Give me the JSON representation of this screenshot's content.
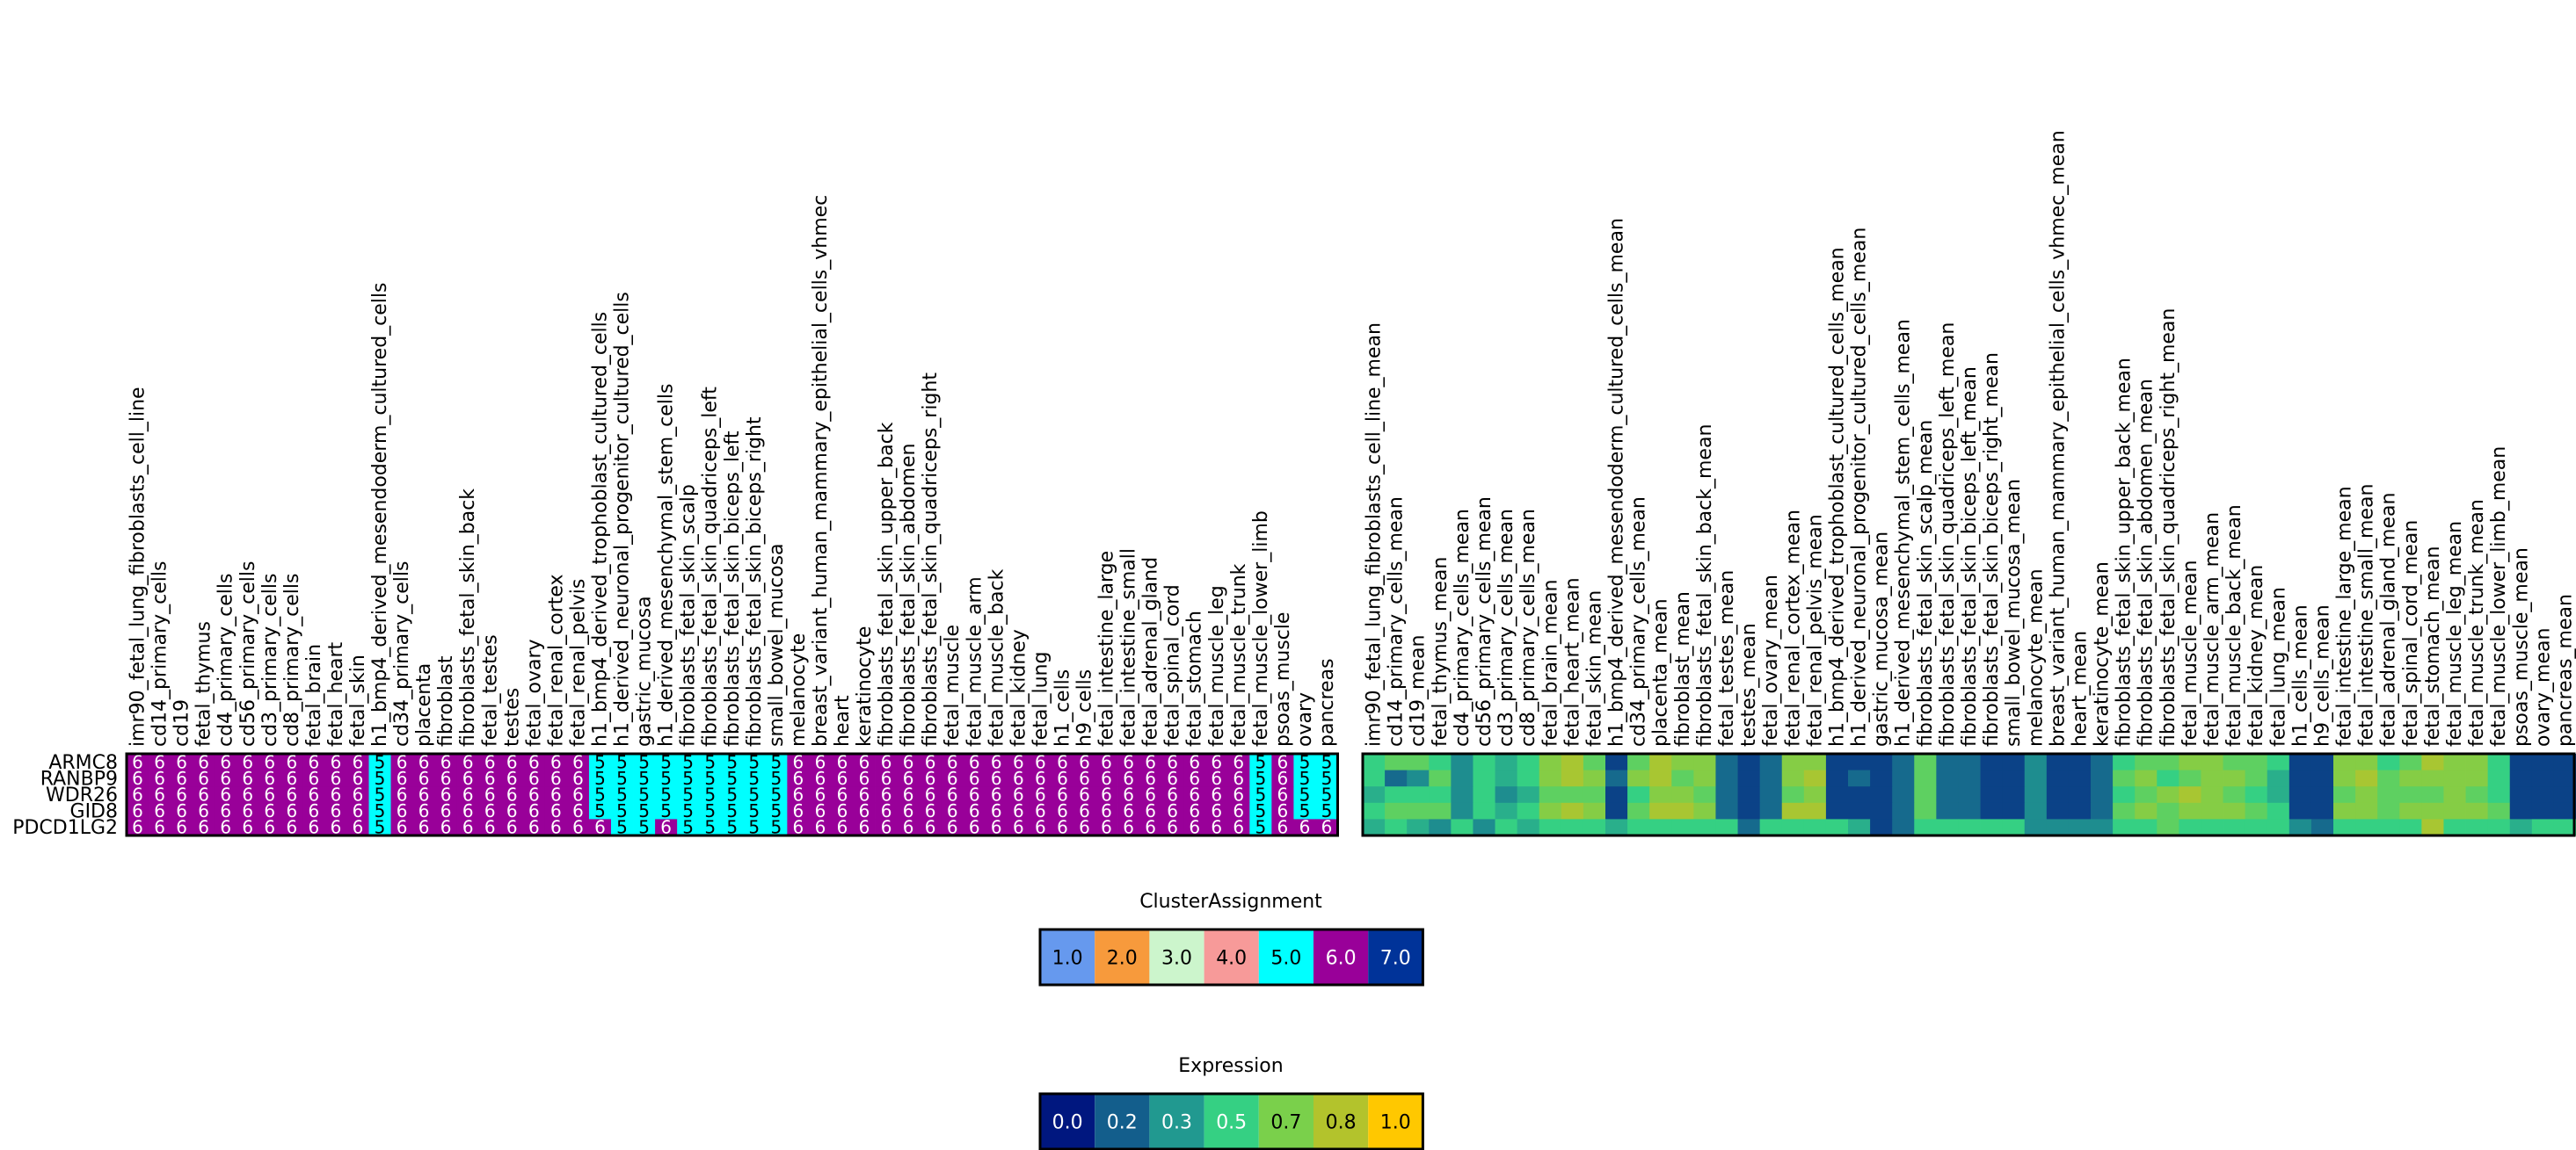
{
  "chart_data": [
    {
      "type": "heatmap",
      "name": "cluster-assignment-matrix",
      "rows": [
        "ARMC8",
        "RANBP9",
        "WDR26",
        "GID8",
        "PDCD1LG2"
      ],
      "columns": [
        "imr90_fetal_lung_fibroblasts_cell_line",
        "cd14_primary_cells",
        "cd19",
        "fetal_thymus",
        "cd4_primary_cells",
        "cd56_primary_cells",
        "cd3_primary_cells",
        "cd8_primary_cells",
        "fetal_brain",
        "fetal_heart",
        "fetal_skin",
        "h1_bmp4_derived_mesendoderm_cultured_cells",
        "cd34_primary_cells",
        "placenta",
        "fibroblast",
        "fibroblasts_fetal_skin_back",
        "fetal_testes",
        "testes",
        "fetal_ovary",
        "fetal_renal_cortex",
        "fetal_renal_pelvis",
        "h1_bmp4_derived_trophoblast_cultured_cells",
        "h1_derived_neuronal_progenitor_cultured_cells",
        "gastric_mucosa",
        "h1_derived_mesenchymal_stem_cells",
        "fibroblasts_fetal_skin_scalp",
        "fibroblasts_fetal_skin_quadriceps_left",
        "fibroblasts_fetal_skin_biceps_left",
        "fibroblasts_fetal_skin_biceps_right",
        "small_bowel_mucosa",
        "melanocyte",
        "breast_variant_human_mammary_epithelial_cells_vhmec",
        "heart",
        "keratinocyte",
        "fibroblasts_fetal_skin_upper_back",
        "fibroblasts_fetal_skin_abdomen",
        "fibroblasts_fetal_skin_quadriceps_right",
        "fetal_muscle",
        "fetal_muscle_arm",
        "fetal_muscle_back",
        "fetal_kidney",
        "fetal_lung",
        "h1_cells",
        "h9_cells",
        "fetal_intestine_large",
        "fetal_intestine_small",
        "fetal_adrenal_gland",
        "fetal_spinal_cord",
        "fetal_stomach",
        "fetal_muscle_leg",
        "fetal_muscle_trunk",
        "fetal_muscle_lower_limb",
        "psoas_muscle",
        "ovary",
        "pancreas"
      ],
      "values": [
        [
          6,
          6,
          6,
          6,
          6,
          6,
          6,
          6,
          6,
          6,
          6,
          5,
          6,
          6,
          6,
          6,
          6,
          6,
          6,
          6,
          6,
          5,
          5,
          5,
          5,
          5,
          5,
          5,
          5,
          5,
          6,
          6,
          6,
          6,
          6,
          6,
          6,
          6,
          6,
          6,
          6,
          6,
          6,
          6,
          6,
          6,
          6,
          6,
          6,
          6,
          6,
          5,
          6,
          5,
          5
        ],
        [
          6,
          6,
          6,
          6,
          6,
          6,
          6,
          6,
          6,
          6,
          6,
          5,
          6,
          6,
          6,
          6,
          6,
          6,
          6,
          6,
          6,
          5,
          5,
          5,
          5,
          5,
          5,
          5,
          5,
          5,
          6,
          6,
          6,
          6,
          6,
          6,
          6,
          6,
          6,
          6,
          6,
          6,
          6,
          6,
          6,
          6,
          6,
          6,
          6,
          6,
          6,
          5,
          6,
          5,
          5
        ],
        [
          6,
          6,
          6,
          6,
          6,
          6,
          6,
          6,
          6,
          6,
          6,
          5,
          6,
          6,
          6,
          6,
          6,
          6,
          6,
          6,
          6,
          5,
          5,
          5,
          5,
          5,
          5,
          5,
          5,
          5,
          6,
          6,
          6,
          6,
          6,
          6,
          6,
          6,
          6,
          6,
          6,
          6,
          6,
          6,
          6,
          6,
          6,
          6,
          6,
          6,
          6,
          5,
          6,
          5,
          5
        ],
        [
          6,
          6,
          6,
          6,
          6,
          6,
          6,
          6,
          6,
          6,
          6,
          5,
          6,
          6,
          6,
          6,
          6,
          6,
          6,
          6,
          6,
          5,
          5,
          5,
          5,
          5,
          5,
          5,
          5,
          5,
          6,
          6,
          6,
          6,
          6,
          6,
          6,
          6,
          6,
          6,
          6,
          6,
          6,
          6,
          6,
          6,
          6,
          6,
          6,
          6,
          6,
          5,
          6,
          5,
          5
        ],
        [
          6,
          6,
          6,
          6,
          6,
          6,
          6,
          6,
          6,
          6,
          6,
          5,
          6,
          6,
          6,
          6,
          6,
          6,
          6,
          6,
          6,
          6,
          5,
          5,
          6,
          5,
          5,
          5,
          5,
          5,
          6,
          6,
          6,
          6,
          6,
          6,
          6,
          6,
          6,
          6,
          6,
          6,
          6,
          6,
          6,
          6,
          6,
          6,
          6,
          6,
          6,
          5,
          6,
          6,
          6
        ]
      ]
    },
    {
      "type": "heatmap",
      "name": "expression-matrix",
      "rows": [
        "ARMC8",
        "RANBP9",
        "WDR26",
        "GID8",
        "PDCD1LG2"
      ],
      "columns": [
        "imr90_fetal_lung_fibroblasts_cell_line_mean",
        "cd14_primary_cells_mean",
        "cd19_mean",
        "fetal_thymus_mean",
        "cd4_primary_cells_mean",
        "cd56_primary_cells_mean",
        "cd3_primary_cells_mean",
        "cd8_primary_cells_mean",
        "fetal_brain_mean",
        "fetal_heart_mean",
        "fetal_skin_mean",
        "h1_bmp4_derived_mesendoderm_cultured_cells_mean",
        "cd34_primary_cells_mean",
        "placenta_mean",
        "fibroblast_mean",
        "fibroblasts_fetal_skin_back_mean",
        "fetal_testes_mean",
        "testes_mean",
        "fetal_ovary_mean",
        "fetal_renal_cortex_mean",
        "fetal_renal_pelvis_mean",
        "h1_bmp4_derived_trophoblast_cultured_cells_mean",
        "h1_derived_neuronal_progenitor_cultured_cells_mean",
        "gastric_mucosa_mean",
        "h1_derived_mesenchymal_stem_cells_mean",
        "fibroblasts_fetal_skin_scalp_mean",
        "fibroblasts_fetal_skin_quadriceps_left_mean",
        "fibroblasts_fetal_skin_biceps_left_mean",
        "fibroblasts_fetal_skin_biceps_right_mean",
        "small_bowel_mucosa_mean",
        "melanocyte_mean",
        "breast_variant_human_mammary_epithelial_cells_vhmec_mean",
        "heart_mean",
        "keratinocyte_mean",
        "fibroblasts_fetal_skin_upper_back_mean",
        "fibroblasts_fetal_skin_abdomen_mean",
        "fibroblasts_fetal_skin_quadriceps_right_mean",
        "fetal_muscle_mean",
        "fetal_muscle_arm_mean",
        "fetal_muscle_back_mean",
        "fetal_kidney_mean",
        "fetal_lung_mean",
        "h1_cells_mean",
        "h9_cells_mean",
        "fetal_intestine_large_mean",
        "fetal_intestine_small_mean",
        "fetal_adrenal_gland_mean",
        "fetal_spinal_cord_mean",
        "fetal_stomach_mean",
        "fetal_muscle_leg_mean",
        "fetal_muscle_trunk_mean",
        "fetal_muscle_lower_limb_mean",
        "psoas_muscle_mean",
        "ovary_mean",
        "pancreas_mean"
      ],
      "values": [
        [
          0.5,
          0.6,
          0.6,
          0.5,
          0.3,
          0.5,
          0.4,
          0.5,
          0.7,
          0.8,
          0.6,
          0.1,
          0.6,
          0.8,
          0.7,
          0.7,
          0.2,
          0.1,
          0.2,
          0.7,
          0.7,
          0.1,
          0.1,
          0.1,
          0.2,
          0.6,
          0.2,
          0.2,
          0.1,
          0.1,
          0.3,
          0.1,
          0.1,
          0.2,
          0.5,
          0.6,
          0.6,
          0.7,
          0.7,
          0.6,
          0.6,
          0.5,
          0.1,
          0.1,
          0.7,
          0.7,
          0.5,
          0.6,
          0.8,
          0.7,
          0.7,
          0.5,
          0.1,
          0.1,
          0.1
        ],
        [
          0.5,
          0.2,
          0.3,
          0.6,
          0.3,
          0.5,
          0.4,
          0.5,
          0.7,
          0.8,
          0.7,
          0.2,
          0.7,
          0.8,
          0.6,
          0.7,
          0.2,
          0.1,
          0.2,
          0.7,
          0.8,
          0.1,
          0.2,
          0.1,
          0.2,
          0.6,
          0.2,
          0.2,
          0.1,
          0.1,
          0.3,
          0.1,
          0.1,
          0.2,
          0.6,
          0.7,
          0.5,
          0.6,
          0.7,
          0.7,
          0.6,
          0.4,
          0.1,
          0.1,
          0.7,
          0.8,
          0.6,
          0.7,
          0.7,
          0.7,
          0.7,
          0.5,
          0.1,
          0.1,
          0.1
        ],
        [
          0.4,
          0.5,
          0.5,
          0.5,
          0.3,
          0.5,
          0.3,
          0.4,
          0.6,
          0.6,
          0.6,
          0.1,
          0.5,
          0.7,
          0.7,
          0.6,
          0.2,
          0.1,
          0.2,
          0.6,
          0.7,
          0.1,
          0.1,
          0.1,
          0.2,
          0.6,
          0.2,
          0.2,
          0.1,
          0.1,
          0.3,
          0.1,
          0.1,
          0.2,
          0.5,
          0.6,
          0.7,
          0.8,
          0.7,
          0.6,
          0.5,
          0.4,
          0.1,
          0.1,
          0.6,
          0.7,
          0.6,
          0.6,
          0.6,
          0.7,
          0.6,
          0.5,
          0.1,
          0.1,
          0.1
        ],
        [
          0.5,
          0.6,
          0.6,
          0.6,
          0.3,
          0.5,
          0.4,
          0.5,
          0.7,
          0.8,
          0.7,
          0.1,
          0.6,
          0.8,
          0.8,
          0.7,
          0.2,
          0.1,
          0.2,
          0.8,
          0.8,
          0.1,
          0.1,
          0.1,
          0.2,
          0.6,
          0.2,
          0.2,
          0.1,
          0.1,
          0.3,
          0.1,
          0.1,
          0.2,
          0.6,
          0.7,
          0.6,
          0.7,
          0.7,
          0.7,
          0.6,
          0.5,
          0.1,
          0.1,
          0.7,
          0.7,
          0.6,
          0.7,
          0.7,
          0.7,
          0.7,
          0.6,
          0.1,
          0.1,
          0.1
        ],
        [
          0.4,
          0.5,
          0.4,
          0.3,
          0.5,
          0.3,
          0.5,
          0.4,
          0.5,
          0.5,
          0.5,
          0.4,
          0.5,
          0.5,
          0.5,
          0.5,
          0.5,
          0.2,
          0.5,
          0.5,
          0.5,
          0.5,
          0.4,
          0.1,
          0.2,
          0.5,
          0.5,
          0.5,
          0.5,
          0.5,
          0.3,
          0.3,
          0.3,
          0.3,
          0.5,
          0.5,
          0.6,
          0.5,
          0.5,
          0.5,
          0.5,
          0.5,
          0.3,
          0.2,
          0.5,
          0.5,
          0.5,
          0.5,
          0.8,
          0.5,
          0.5,
          0.5,
          0.4,
          0.5,
          0.5
        ]
      ],
      "vmin": 0,
      "vmax": 1
    }
  ],
  "legends": {
    "cluster": {
      "title": "ClusterAssignment",
      "labels": [
        "1.0",
        "2.0",
        "3.0",
        "4.0",
        "5.0",
        "6.0",
        "7.0"
      ],
      "colors": [
        "#6699ee",
        "#f79a3c",
        "#ccf5cc",
        "#f79a99",
        "#00ffff",
        "#990099",
        "#003399"
      ],
      "text_colors": [
        "#000000",
        "#000000",
        "#000000",
        "#000000",
        "#000000",
        "#ffffff",
        "#ffffff"
      ]
    },
    "expression": {
      "title": "Expression",
      "labels": [
        "0.0",
        "0.2",
        "0.3",
        "0.5",
        "0.7",
        "0.8",
        "1.0"
      ],
      "colors": [
        "#00177f",
        "#135e8c",
        "#219990",
        "#35d083",
        "#7ad04b",
        "#b3c32c",
        "#ffc800"
      ],
      "text_colors": [
        "#ffffff",
        "#ffffff",
        "#ffffff",
        "#ffffff",
        "#000000",
        "#000000",
        "#000000"
      ]
    }
  },
  "colors": {
    "cluster_5": "#00ffff",
    "cluster_6": "#990099"
  }
}
